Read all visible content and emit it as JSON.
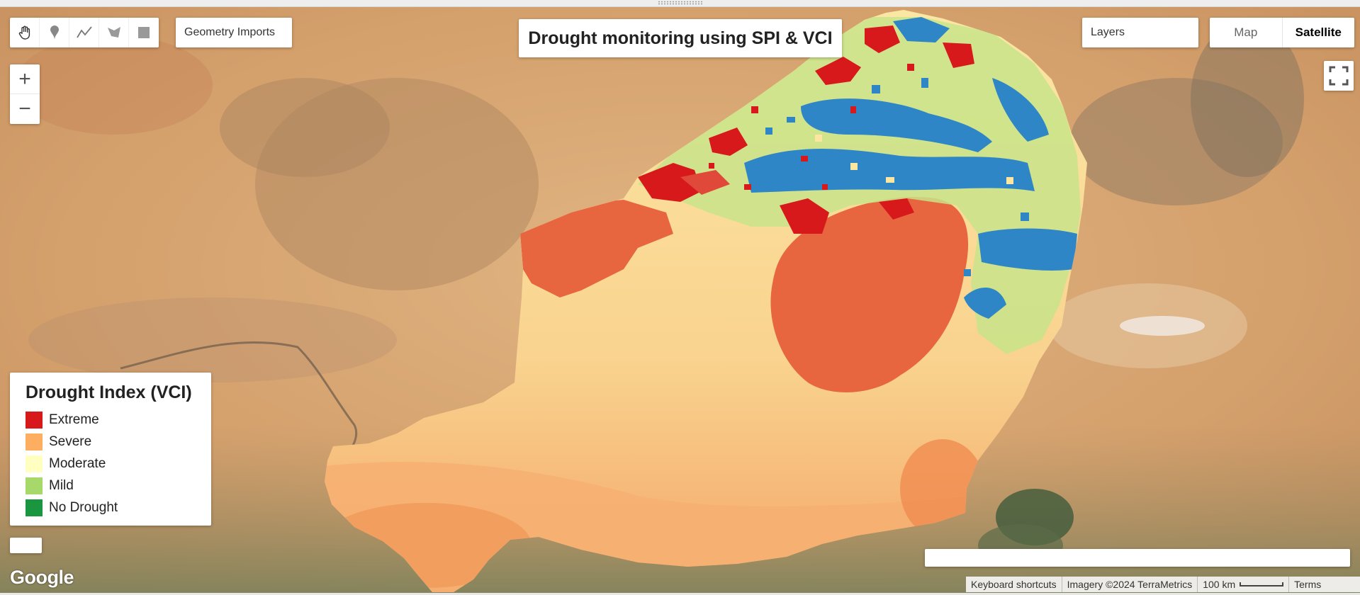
{
  "title": "Drought monitoring using SPI & VCI",
  "toolbar": {
    "geometry_imports": "Geometry Imports",
    "tools": [
      "hand-tool",
      "marker-tool",
      "line-tool",
      "polygon-tool",
      "rectangle-tool"
    ]
  },
  "layers": {
    "label": "Layers"
  },
  "map_type": {
    "map": "Map",
    "satellite": "Satellite",
    "selected": "Satellite"
  },
  "zoom": {
    "in": "+",
    "out": "−"
  },
  "legend": {
    "title": "Drought Index (VCI)",
    "items": [
      {
        "label": "Extreme",
        "color": "#d7191c"
      },
      {
        "label": "Severe",
        "color": "#fdae61"
      },
      {
        "label": "Moderate",
        "color": "#ffffc0"
      },
      {
        "label": "Mild",
        "color": "#a6d96a"
      },
      {
        "label": "No Drought",
        "color": "#1a9641"
      }
    ]
  },
  "attribution": {
    "keyboard": "Keyboard shortcuts",
    "imagery": "Imagery ©2024 TerraMetrics",
    "scale": "100 km",
    "terms": "Terms"
  },
  "logo": "Google",
  "colors": {
    "extreme": "#d7191c",
    "severe": "#e8663f",
    "moderate": "#fbe8a0",
    "mild": "#b6e07a",
    "wet": "#2f86c6",
    "desert": "#d3a16f"
  }
}
